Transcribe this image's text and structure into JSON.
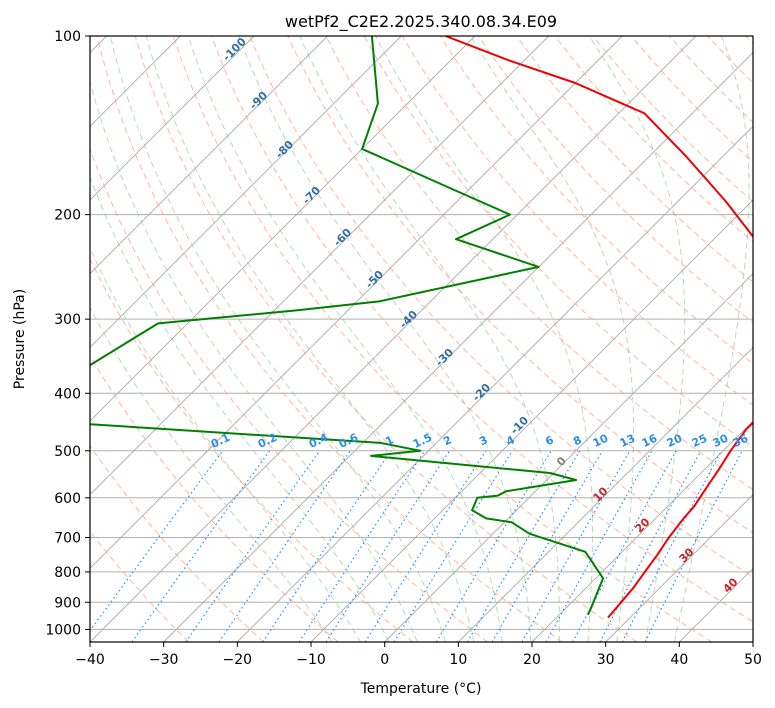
{
  "chart_data": {
    "type": "line",
    "title": "wetPf2_C2E2.2025.340.08.34.E09",
    "xlabel": "Temperature (°C)",
    "ylabel": "Pressure (hPa)",
    "xlim": [
      -40,
      50
    ],
    "ylim": [
      1050,
      100
    ],
    "y_scale": "log",
    "skew_deg": 45,
    "x_ticks": [
      -40,
      -30,
      -20,
      -10,
      0,
      10,
      20,
      30,
      40,
      50
    ],
    "y_ticks": [
      100,
      200,
      300,
      400,
      500,
      600,
      700,
      800,
      900,
      1000
    ],
    "grid": true,
    "colors": {
      "temperature": "#ee0000",
      "dewpoint": "#008000",
      "isotherm": "#a9a9a9",
      "dry_adiabat": "#ffa07a",
      "moist_adiabat": "#8fbc8f",
      "mixing_ratio": "#1e90ff"
    },
    "series": [
      {
        "key": "temperature",
        "x": [
          27,
          26.7,
          26.4,
          25.8,
          25.2,
          24.4,
          23.8,
          23.6,
          23.2,
          22.8,
          22.4,
          22,
          21,
          20.2,
          20.3,
          21.4,
          21.8,
          16.8,
          12.5,
          7.8,
          3.2,
          -3,
          -13.5,
          -24.8,
          -36.5,
          -50,
          -62,
          -74
        ],
        "y": [
          955,
          900,
          850,
          800,
          750,
          700,
          650,
          620,
          600,
          580,
          560,
          540,
          500,
          460,
          430,
          410,
          400,
          370,
          320,
          280,
          250,
          225,
          190,
          160,
          135,
          120,
          110,
          100
        ]
      },
      {
        "key": "dewpoint",
        "x": [
          23.9,
          23.4,
          21,
          15,
          5,
          1,
          -3,
          -6,
          -7,
          -4.5,
          -4,
          4,
          -0.5,
          -27.1,
          -21.1,
          -27.6,
          -71,
          -80,
          -74,
          -57,
          -47,
          -30,
          -45,
          -41,
          -53,
          -70,
          -74,
          -84
        ],
        "y": [
          945,
          920,
          820,
          740,
          690,
          660,
          650,
          630,
          600,
          595,
          585,
          560,
          545,
          510,
          500,
          485,
          450,
          400,
          305,
          290,
          280,
          245,
          220,
          200,
          180,
          155,
          130,
          100
        ]
      }
    ],
    "dry_adiabat_labels": [
      "-100",
      "-90",
      "-80",
      "-70",
      "-60",
      "-50",
      "-40",
      "-30",
      "-20",
      "-10"
    ],
    "mixing_ratio_labels": [
      "0.1",
      "0.2",
      "0.4",
      "0.6",
      "1",
      "1.5",
      "2",
      "3",
      "4",
      "6",
      "8",
      "10",
      "13",
      "16",
      "20",
      "25",
      "30",
      "36"
    ],
    "moist_adiabat_labels": [
      "0",
      "10",
      "20",
      "30",
      "40"
    ]
  }
}
